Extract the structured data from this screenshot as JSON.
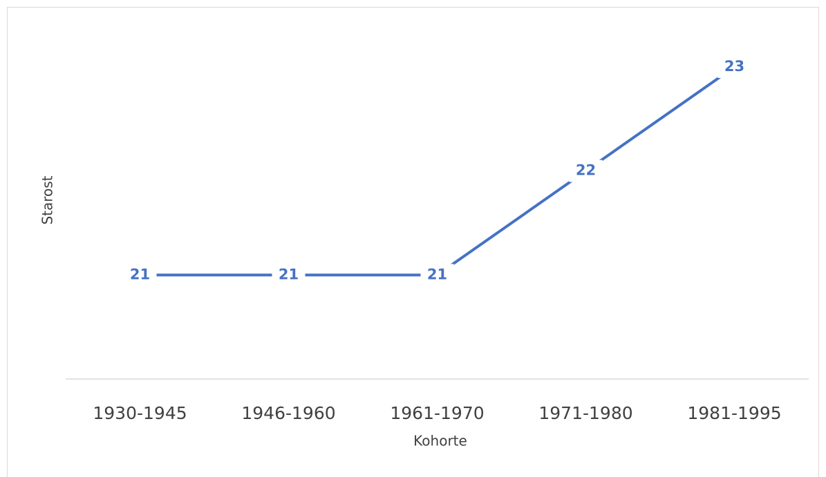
{
  "chart_data": {
    "type": "line",
    "x_label": "Kohorte",
    "y_label": "Starost",
    "categories": [
      "1930-1945",
      "1946-1960",
      "1961-1970",
      "1971-1980",
      "1981-1995"
    ],
    "series": [
      {
        "name": "Starost",
        "color": "#4472c4",
        "values": [
          21,
          21,
          21,
          22,
          23
        ]
      }
    ],
    "ylim": [
      20,
      23
    ],
    "grid": false,
    "legend": false
  }
}
